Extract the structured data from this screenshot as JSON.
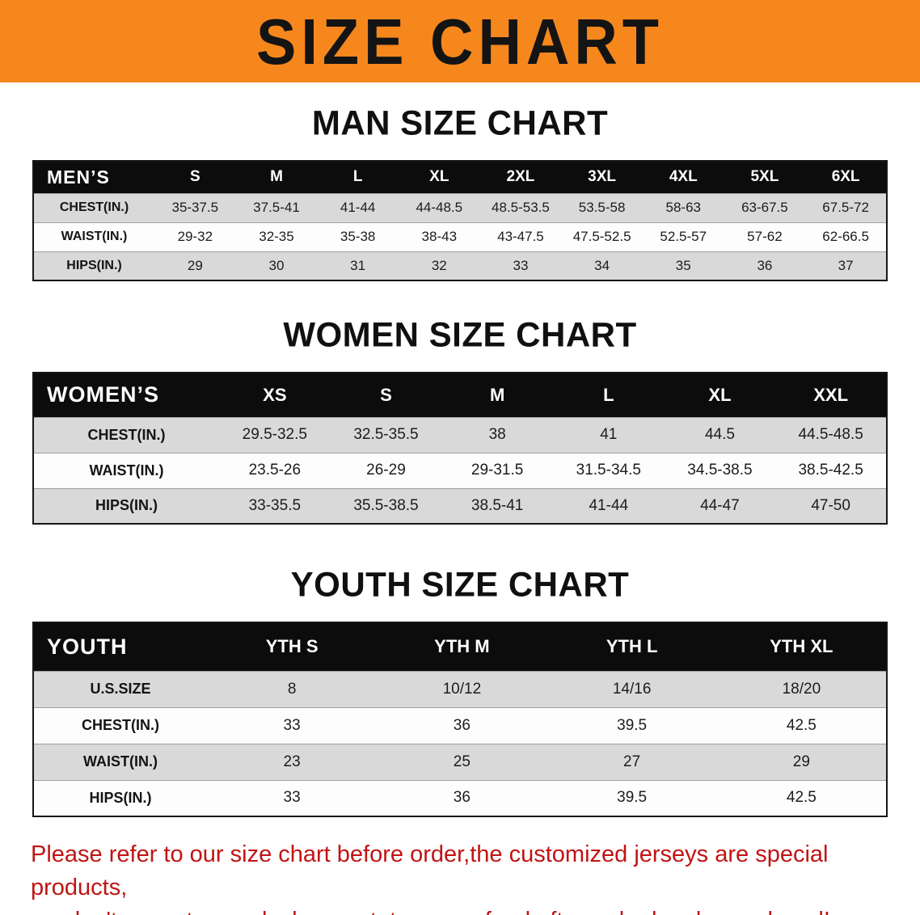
{
  "banner": {
    "title": "SIZE CHART",
    "bg_color": "#f6871d"
  },
  "sections": [
    {
      "id": "men",
      "heading": "MAN SIZE CHART",
      "table": {
        "header_label": "MEN’S",
        "columns": [
          "S",
          "M",
          "L",
          "XL",
          "2XL",
          "3XL",
          "4XL",
          "5XL",
          "6XL"
        ],
        "rows": [
          {
            "label": "CHEST(IN.)",
            "values": [
              "35-37.5",
              "37.5-41",
              "41-44",
              "44-48.5",
              "48.5-53.5",
              "53.5-58",
              "58-63",
              "63-67.5",
              "67.5-72"
            ]
          },
          {
            "label": "WAIST(IN.)",
            "values": [
              "29-32",
              "32-35",
              "35-38",
              "38-43",
              "43-47.5",
              "47.5-52.5",
              "52.5-57",
              "57-62",
              "62-66.5"
            ]
          },
          {
            "label": "HIPS(IN.)",
            "values": [
              "29",
              "30",
              "31",
              "32",
              "33",
              "34",
              "35",
              "36",
              "37"
            ]
          }
        ]
      }
    },
    {
      "id": "women",
      "heading": "WOMEN SIZE CHART",
      "table": {
        "header_label": "WOMEN’S",
        "columns": [
          "XS",
          "S",
          "M",
          "L",
          "XL",
          "XXL"
        ],
        "rows": [
          {
            "label": "CHEST(IN.)",
            "values": [
              "29.5-32.5",
              "32.5-35.5",
              "38",
              "41",
              "44.5",
              "44.5-48.5"
            ]
          },
          {
            "label": "WAIST(IN.)",
            "values": [
              "23.5-26",
              "26-29",
              "29-31.5",
              "31.5-34.5",
              "34.5-38.5",
              "38.5-42.5"
            ]
          },
          {
            "label": "HIPS(IN.)",
            "values": [
              "33-35.5",
              "35.5-38.5",
              "38.5-41",
              "41-44",
              "44-47",
              "47-50"
            ]
          }
        ]
      }
    },
    {
      "id": "youth",
      "heading": "YOUTH SIZE CHART",
      "table": {
        "header_label": "YOUTH",
        "columns": [
          "YTH S",
          "YTH M",
          "YTH L",
          "YTH XL"
        ],
        "rows": [
          {
            "label": "U.S.SIZE",
            "values": [
              "8",
              "10/12",
              "14/16",
              "18/20"
            ]
          },
          {
            "label": "CHEST(IN.)",
            "values": [
              "33",
              "36",
              "39.5",
              "42.5"
            ]
          },
          {
            "label": "WAIST(IN.)",
            "values": [
              "23",
              "25",
              "27",
              "29"
            ]
          },
          {
            "label": "HIPS(IN.)",
            "values": [
              "33",
              "36",
              "39.5",
              "42.5"
            ]
          }
        ]
      }
    }
  ],
  "footer": {
    "lines": [
      "Please refer to our size chart before order,the customized jerseys are special products,",
      "we don't accept cancel, change, teturn or refund after order has been placed!"
    ],
    "text_color": "#c11414"
  }
}
